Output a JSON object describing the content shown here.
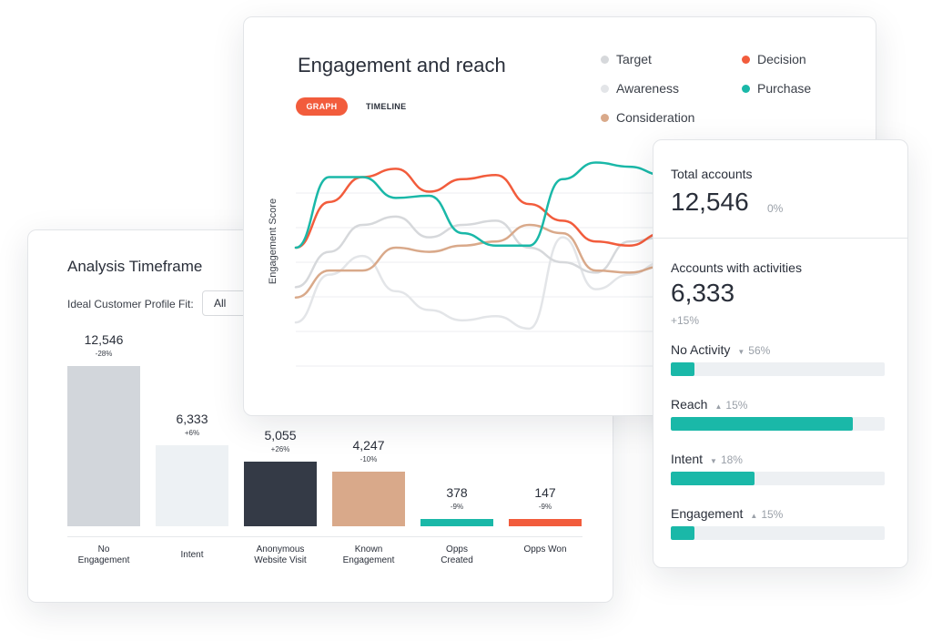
{
  "colors": {
    "accent": "#f25c3c",
    "teal": "#1ab8a8",
    "dark": "#343a46",
    "tan": "#d9a98a",
    "grey_bar": "#d2d6db",
    "light_bar": "#edf1f4",
    "awareness": "#e3e5e8",
    "target": "#d6d8db"
  },
  "analysis": {
    "title": "Analysis Timeframe",
    "fit_label": "Ideal Customer Profile Fit:",
    "fit_value": "All",
    "bars": [
      {
        "label": "No Engagement",
        "value": "12,546",
        "change": "-28%",
        "amount": 12546,
        "color": "#d2d6db"
      },
      {
        "label": "Intent",
        "value": "6,333",
        "change": "+6%",
        "amount": 6333,
        "color": "#edf1f4"
      },
      {
        "label": "Anonymous Website Visit",
        "value": "5,055",
        "change": "+26%",
        "amount": 5055,
        "color": "#343a46"
      },
      {
        "label": "Known Engagement",
        "value": "4,247",
        "change": "-10%",
        "amount": 4247,
        "color": "#d9a98a"
      },
      {
        "label": "Opps Created",
        "value": "378",
        "change": "-9%",
        "amount": 378,
        "color": "#1ab8a8"
      },
      {
        "label": "Opps Won",
        "value": "147",
        "change": "-9%",
        "amount": 147,
        "color": "#f25c3c"
      }
    ]
  },
  "engagement": {
    "title": "Engagement and reach",
    "tabs": {
      "graph": "GRAPH",
      "timeline": "TIMELINE"
    },
    "y_label": "Engagement Score",
    "legend": [
      {
        "name": "Target",
        "color": "#d6d8db"
      },
      {
        "name": "Decision",
        "color": "#f25c3c"
      },
      {
        "name": "Awareness",
        "color": "#e3e5e8"
      },
      {
        "name": "Purchase",
        "color": "#1ab8a8"
      },
      {
        "name": "Consideration",
        "color": "#d9a98a"
      }
    ]
  },
  "chart_data": {
    "type": "line",
    "title": "Engagement and reach",
    "xlabel": "",
    "ylabel": "Engagement Score",
    "x": [
      0,
      1,
      2,
      3,
      4,
      5,
      6,
      7,
      8,
      9,
      10,
      11
    ],
    "ylim": [
      0,
      100
    ],
    "series": [
      {
        "name": "Decision",
        "color": "#f25c3c",
        "values": [
          57,
          79,
          91,
          95,
          84,
          90,
          92,
          78,
          70,
          60,
          58,
          64
        ]
      },
      {
        "name": "Purchase",
        "color": "#1ab8a8",
        "values": [
          57,
          91,
          91,
          81,
          82,
          64,
          58,
          58,
          90,
          98,
          96,
          92
        ]
      },
      {
        "name": "Consideration",
        "color": "#d9a98a",
        "values": [
          33,
          46,
          46,
          57,
          55,
          58,
          60,
          68,
          64,
          46,
          45,
          48
        ]
      },
      {
        "name": "Target",
        "color": "#d6d8db",
        "values": [
          38,
          55,
          68,
          72,
          62,
          68,
          70,
          57,
          50,
          45,
          60,
          62
        ]
      },
      {
        "name": "Awareness",
        "color": "#e3e5e8",
        "values": [
          21,
          44,
          53,
          36,
          27,
          22,
          24,
          18,
          62,
          37,
          44,
          50
        ]
      }
    ]
  },
  "accounts": {
    "total_label": "Total accounts",
    "total_value": "12,546",
    "total_change": "0%",
    "activity_label": "Accounts with activities",
    "activity_value": "6,333",
    "activity_change": "+15%",
    "metrics": [
      {
        "label": "No Activity",
        "arrow": "▼",
        "pct": "56%",
        "fill_fraction": 0.11
      },
      {
        "label": "Reach",
        "arrow": "▲",
        "pct": "15%",
        "fill_fraction": 0.85
      },
      {
        "label": "Intent",
        "arrow": "▼",
        "pct": "18%",
        "fill_fraction": 0.39
      },
      {
        "label": "Engagement",
        "arrow": "▲",
        "pct": "15%",
        "fill_fraction": 0.11
      }
    ]
  }
}
